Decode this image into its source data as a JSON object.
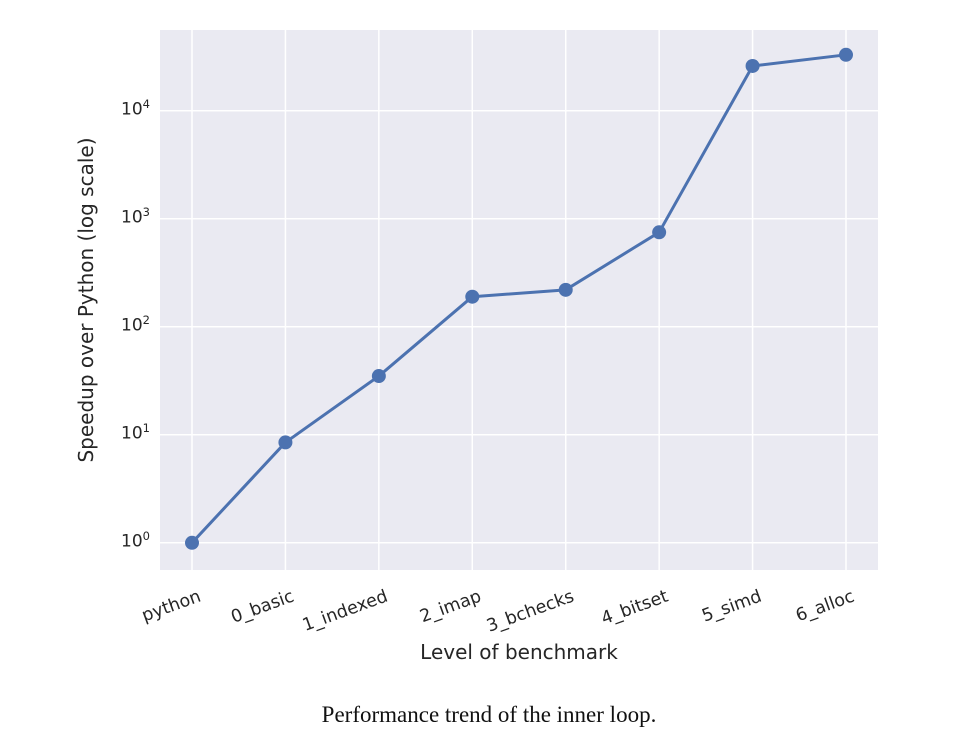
{
  "chart_data": {
    "type": "line",
    "categories": [
      "python",
      "0_basic",
      "1_indexed",
      "2_imap",
      "3_bchecks",
      "4_bitset",
      "5_simd",
      "6_alloc"
    ],
    "values": [
      1.0,
      8.5,
      35,
      190,
      220,
      750,
      26000,
      33000
    ],
    "title": "",
    "xlabel": "Level of benchmark",
    "ylabel": "Speedup over Python (log scale)",
    "yscale": "log",
    "ylim": [
      0.56,
      56000
    ],
    "yticks": [
      1,
      10,
      100,
      1000,
      10000
    ],
    "ytick_labels": [
      "10^0",
      "10^1",
      "10^2",
      "10^3",
      "10^4"
    ],
    "grid": true,
    "legend": "none",
    "line_color": "#4c72b0",
    "marker": "o",
    "plot_bg": "#eaeaf2",
    "grid_color": "#ffffff"
  },
  "caption": "Performance trend of the inner loop."
}
